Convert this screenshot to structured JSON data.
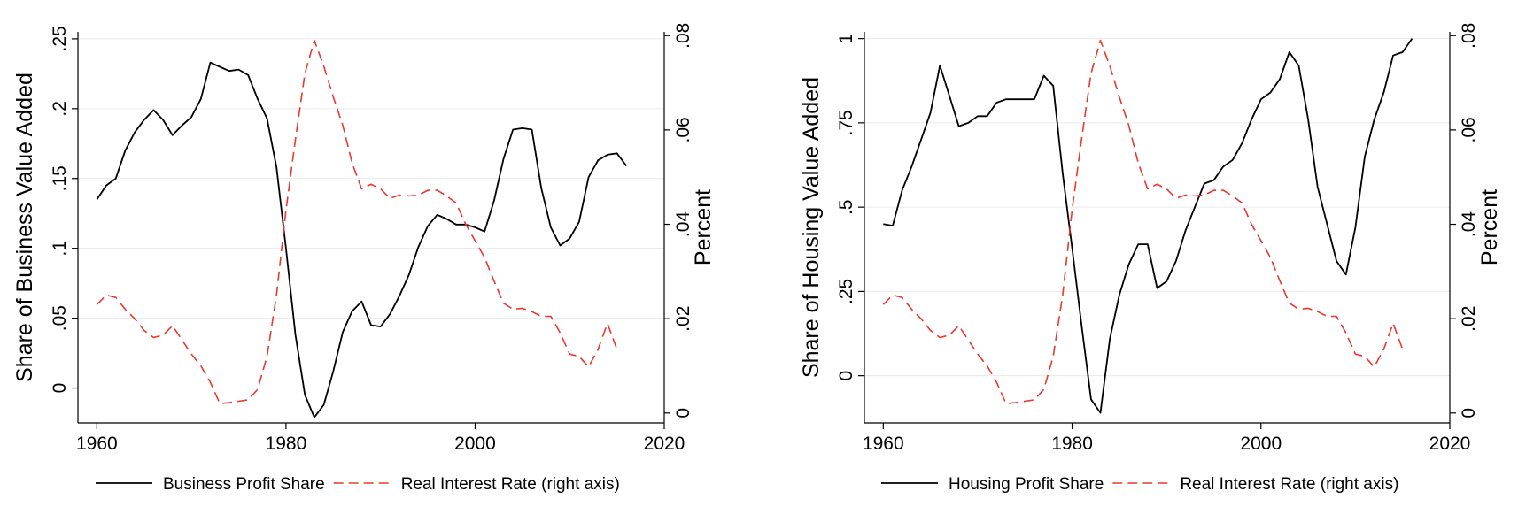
{
  "chart_data": [
    {
      "type": "line",
      "ylabel": "Share of Business Value Added",
      "y2label": "Percent",
      "xlim": [
        1958,
        2020
      ],
      "ylim": [
        -0.025,
        0.255
      ],
      "y2lim": [
        -0.0021,
        0.0808
      ],
      "x_ticks": [
        1960,
        1980,
        2000,
        2020
      ],
      "x_tick_labels": [
        "1960",
        "1980",
        "2000",
        "2020"
      ],
      "y_ticks": [
        0,
        0.05,
        0.1,
        0.15,
        0.2,
        0.25
      ],
      "y_tick_labels": [
        "0",
        ".05",
        ".1",
        ".15",
        ".2",
        ".25"
      ],
      "y2_ticks": [
        0,
        0.02,
        0.04,
        0.06,
        0.08
      ],
      "y2_tick_labels": [
        "0",
        ".02",
        ".04",
        ".06",
        ".08"
      ],
      "grid": true,
      "legend_position": "bottom",
      "series": [
        {
          "name": "Business Profit Share",
          "axis": "left",
          "color": "#000000",
          "style": "solid",
          "x": [
            1960,
            1961,
            1962,
            1963,
            1964,
            1965,
            1966,
            1967,
            1968,
            1969,
            1970,
            1971,
            1972,
            1973,
            1974,
            1975,
            1976,
            1977,
            1978,
            1979,
            1980,
            1981,
            1982,
            1983,
            1984,
            1985,
            1986,
            1987,
            1988,
            1989,
            1990,
            1991,
            1992,
            1993,
            1994,
            1995,
            1996,
            1997,
            1998,
            1999,
            2000,
            2001,
            2002,
            2003,
            2004,
            2005,
            2006,
            2007,
            2008,
            2009,
            2010,
            2011,
            2012,
            2013,
            2014,
            2015,
            2016
          ],
          "y": [
            0.135,
            0.145,
            0.15,
            0.17,
            0.183,
            0.192,
            0.199,
            0.192,
            0.181,
            0.188,
            0.194,
            0.207,
            0.233,
            0.23,
            0.227,
            0.228,
            0.224,
            0.207,
            0.193,
            0.158,
            0.1,
            0.038,
            -0.005,
            -0.021,
            -0.012,
            0.012,
            0.04,
            0.055,
            0.062,
            0.045,
            0.044,
            0.053,
            0.066,
            0.081,
            0.101,
            0.116,
            0.124,
            0.121,
            0.117,
            0.117,
            0.115,
            0.112,
            0.134,
            0.164,
            0.185,
            0.186,
            0.185,
            0.143,
            0.115,
            0.102,
            0.107,
            0.119,
            0.151,
            0.163,
            0.167,
            0.168,
            0.159
          ]
        },
        {
          "name": "Real Interest Rate (right axis)",
          "axis": "right",
          "color": "#e8392f",
          "style": "dashed",
          "x": [
            1960,
            1961,
            1962,
            1963,
            1964,
            1965,
            1966,
            1967,
            1968,
            1969,
            1970,
            1971,
            1972,
            1973,
            1974,
            1975,
            1976,
            1977,
            1978,
            1979,
            1980,
            1981,
            1982,
            1983,
            1984,
            1985,
            1986,
            1987,
            1988,
            1989,
            1990,
            1991,
            1992,
            1993,
            1994,
            1995,
            1996,
            1997,
            1998,
            1999,
            2000,
            2001,
            2002,
            2003,
            2004,
            2005,
            2006,
            2007,
            2008,
            2009,
            2010,
            2011,
            2012,
            2013,
            2014,
            2015
          ],
          "y": [
            0.023,
            0.025,
            0.0245,
            0.022,
            0.02,
            0.0175,
            0.016,
            0.0165,
            0.0185,
            0.0155,
            0.0125,
            0.01,
            0.0065,
            0.002,
            0.0022,
            0.0025,
            0.0028,
            0.005,
            0.012,
            0.025,
            0.043,
            0.058,
            0.072,
            0.079,
            0.0735,
            0.067,
            0.061,
            0.053,
            0.0475,
            0.0485,
            0.0475,
            0.0455,
            0.0462,
            0.046,
            0.0462,
            0.0472,
            0.0472,
            0.046,
            0.0445,
            0.04,
            0.0365,
            0.033,
            0.028,
            0.0233,
            0.022,
            0.0222,
            0.0215,
            0.0205,
            0.0205,
            0.017,
            0.0125,
            0.012,
            0.0098,
            0.0135,
            0.019,
            0.0135
          ]
        }
      ]
    },
    {
      "type": "line",
      "ylabel": "Share of Housing Value Added",
      "y2label": "Percent",
      "xlim": [
        1958,
        2020
      ],
      "ylim": [
        -0.14,
        1.02
      ],
      "y2lim": [
        -0.0021,
        0.0808
      ],
      "x_ticks": [
        1960,
        1980,
        2000,
        2020
      ],
      "x_tick_labels": [
        "1960",
        "1980",
        "2000",
        "2020"
      ],
      "y_ticks": [
        0,
        0.25,
        0.5,
        0.75,
        1
      ],
      "y_tick_labels": [
        "0",
        ".25",
        ".5",
        ".75",
        "1"
      ],
      "y2_ticks": [
        0,
        0.02,
        0.04,
        0.06,
        0.08
      ],
      "y2_tick_labels": [
        "0",
        ".02",
        ".04",
        ".06",
        ".08"
      ],
      "grid": true,
      "legend_position": "bottom",
      "series": [
        {
          "name": "Housing Profit Share",
          "axis": "left",
          "color": "#000000",
          "style": "solid",
          "x": [
            1960,
            1961,
            1962,
            1963,
            1964,
            1965,
            1966,
            1967,
            1968,
            1969,
            1970,
            1971,
            1972,
            1973,
            1974,
            1975,
            1976,
            1977,
            1978,
            1979,
            1980,
            1981,
            1982,
            1983,
            1984,
            1985,
            1986,
            1987,
            1988,
            1989,
            1990,
            1991,
            1992,
            1993,
            1994,
            1995,
            1996,
            1997,
            1998,
            1999,
            2000,
            2001,
            2002,
            2003,
            2004,
            2005,
            2006,
            2007,
            2008,
            2009,
            2010,
            2011,
            2012,
            2013,
            2014,
            2015,
            2016
          ],
          "y": [
            0.45,
            0.445,
            0.55,
            0.62,
            0.7,
            0.78,
            0.92,
            0.83,
            0.74,
            0.75,
            0.77,
            0.77,
            0.81,
            0.82,
            0.82,
            0.82,
            0.82,
            0.89,
            0.86,
            0.6,
            0.38,
            0.15,
            -0.07,
            -0.11,
            0.11,
            0.24,
            0.33,
            0.39,
            0.39,
            0.26,
            0.28,
            0.34,
            0.43,
            0.5,
            0.57,
            0.58,
            0.62,
            0.64,
            0.69,
            0.76,
            0.82,
            0.84,
            0.88,
            0.96,
            0.92,
            0.76,
            0.56,
            0.45,
            0.34,
            0.3,
            0.44,
            0.65,
            0.76,
            0.84,
            0.95,
            0.96,
            1.0
          ]
        },
        {
          "name": "Real Interest Rate (right axis)",
          "axis": "right",
          "color": "#e8392f",
          "style": "dashed",
          "x": [
            1960,
            1961,
            1962,
            1963,
            1964,
            1965,
            1966,
            1967,
            1968,
            1969,
            1970,
            1971,
            1972,
            1973,
            1974,
            1975,
            1976,
            1977,
            1978,
            1979,
            1980,
            1981,
            1982,
            1983,
            1984,
            1985,
            1986,
            1987,
            1988,
            1989,
            1990,
            1991,
            1992,
            1993,
            1994,
            1995,
            1996,
            1997,
            1998,
            1999,
            2000,
            2001,
            2002,
            2003,
            2004,
            2005,
            2006,
            2007,
            2008,
            2009,
            2010,
            2011,
            2012,
            2013,
            2014,
            2015
          ],
          "y": [
            0.023,
            0.025,
            0.0245,
            0.022,
            0.02,
            0.0175,
            0.016,
            0.0165,
            0.0185,
            0.0155,
            0.0125,
            0.01,
            0.0065,
            0.002,
            0.0022,
            0.0025,
            0.0028,
            0.005,
            0.012,
            0.025,
            0.043,
            0.058,
            0.072,
            0.079,
            0.0735,
            0.067,
            0.061,
            0.053,
            0.0475,
            0.0485,
            0.0475,
            0.0455,
            0.0462,
            0.046,
            0.0462,
            0.0472,
            0.0472,
            0.046,
            0.0445,
            0.04,
            0.0365,
            0.033,
            0.028,
            0.0233,
            0.022,
            0.0222,
            0.0215,
            0.0205,
            0.0205,
            0.017,
            0.0125,
            0.012,
            0.0098,
            0.0135,
            0.019,
            0.0135
          ]
        }
      ]
    }
  ]
}
